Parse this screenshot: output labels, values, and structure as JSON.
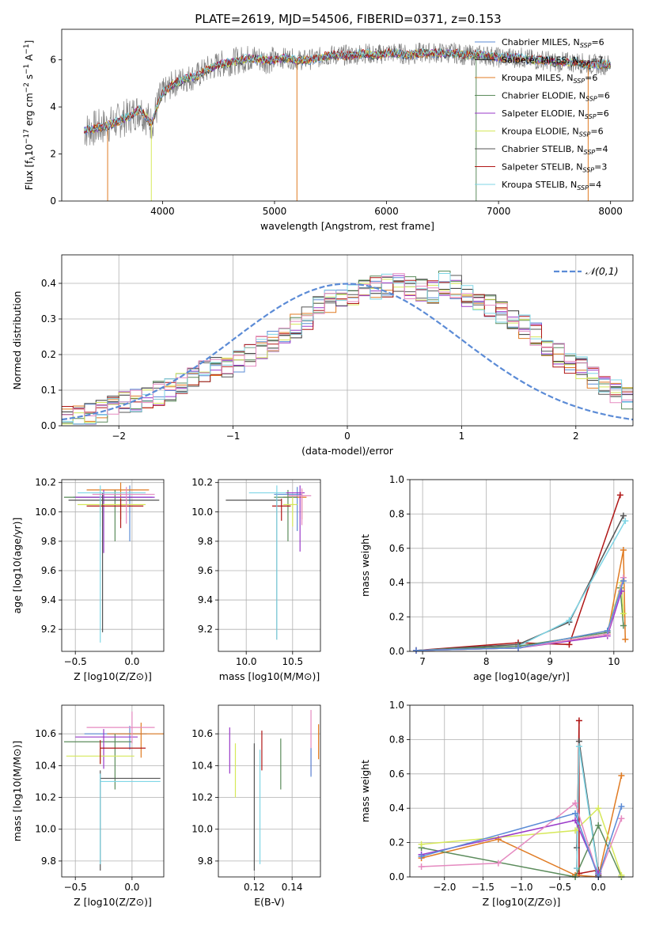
{
  "figure_title": "PLATE=2619, MJD=54506, FIBERID=0371, z=0.153",
  "series_colors": [
    "#5b8bd6",
    "#333333",
    "#e07b23",
    "#5c8c5c",
    "#9a3ac9",
    "#d6e85a",
    "#555555",
    "#b01717",
    "#7fd6e6",
    "#e58ac0"
  ],
  "chart_data": [
    {
      "type": "line",
      "title": "PLATE=2619, MJD=54506, FIBERID=0371, z=0.153",
      "xlabel": "wavelength [Angstrom, rest frame]",
      "ylabel": "Flux [f_λ 10^-17 erg cm^-2 s^-1 A^-1]",
      "xlim": [
        3100,
        8200
      ],
      "ylim": [
        0,
        7.3
      ],
      "xticks": [
        4000,
        5000,
        6000,
        7000,
        8000
      ],
      "yticks": [
        0,
        2,
        4,
        6
      ],
      "legend_placement": "right",
      "series": [
        {
          "name": "Chabrier MILES, NSSP=6",
          "color": "#5b8bd6"
        },
        {
          "name": "Salpeter MILES, NSSP=7",
          "color": "#333333"
        },
        {
          "name": "Kroupa MILES, NSSP=6",
          "color": "#e07b23"
        },
        {
          "name": "Chabrier ELODIE, NSSP=6",
          "color": "#5c8c5c"
        },
        {
          "name": "Salpeter ELODIE, NSSP=6",
          "color": "#9a3ac9"
        },
        {
          "name": "Kroupa ELODIE, NSSP=6",
          "color": "#d6e85a"
        },
        {
          "name": "Chabrier STELIB, NSSP=4",
          "color": "#555555"
        },
        {
          "name": "Salpeter STELIB, NSSP=3",
          "color": "#b01717"
        },
        {
          "name": "Kroupa STELIB, NSSP=4",
          "color": "#7fd6e6"
        }
      ],
      "data_color": "#808080",
      "x": [
        3300,
        3400,
        3500,
        3600,
        3700,
        3800,
        3900,
        4000,
        4100,
        4200,
        4300,
        4400,
        4500,
        4600,
        4700,
        4800,
        4900,
        5000,
        5100,
        5200,
        5300,
        5400,
        5500,
        5600,
        5700,
        5800,
        5900,
        6000,
        6100,
        6200,
        6300,
        6400,
        6500,
        6600,
        6700,
        6800,
        6900,
        7000,
        7100,
        7200,
        7300,
        7400,
        7500,
        7600,
        7700,
        7800,
        7900,
        8000
      ],
      "model_y": [
        3.0,
        3.1,
        3.2,
        3.4,
        3.6,
        3.9,
        3.3,
        4.6,
        5.0,
        5.2,
        5.3,
        5.6,
        5.8,
        5.9,
        6.0,
        6.1,
        6.0,
        6.0,
        6.1,
        6.0,
        6.0,
        6.1,
        6.2,
        6.2,
        6.2,
        6.3,
        6.2,
        6.3,
        6.3,
        6.2,
        6.3,
        6.3,
        6.3,
        6.3,
        6.2,
        6.2,
        6.2,
        6.1,
        6.1,
        6.1,
        6.0,
        6.0,
        5.9,
        5.9,
        5.9,
        5.8,
        5.8,
        5.8
      ]
    },
    {
      "type": "bar",
      "xlabel": "(data-model)/error",
      "ylabel": "Normed distribution",
      "xlim": [
        -2.5,
        2.5
      ],
      "ylim": [
        0,
        0.48
      ],
      "xticks": [
        -2,
        -1,
        0,
        1,
        2
      ],
      "yticks": [
        0.0,
        0.1,
        0.2,
        0.3,
        0.4
      ],
      "legend": "𝒩(0,1)",
      "legend_placement": "top-right",
      "bin_width": 0.1,
      "bin_start": -2.5,
      "hist_values": [
        0.02,
        0.025,
        0.03,
        0.04,
        0.055,
        0.065,
        0.07,
        0.075,
        0.09,
        0.1,
        0.115,
        0.13,
        0.15,
        0.16,
        0.17,
        0.185,
        0.2,
        0.22,
        0.24,
        0.26,
        0.28,
        0.3,
        0.33,
        0.35,
        0.36,
        0.37,
        0.38,
        0.39,
        0.395,
        0.4,
        0.39,
        0.38,
        0.375,
        0.4,
        0.39,
        0.37,
        0.36,
        0.34,
        0.32,
        0.3,
        0.28,
        0.26,
        0.23,
        0.2,
        0.18,
        0.16,
        0.14,
        0.12,
        0.1,
        0.08
      ],
      "normal_color": "#5b8bd6"
    },
    {
      "type": "scatter",
      "xlabel": "Z [log10(Z/Z⊙)]",
      "ylabel": "age [log10(age/yr)]",
      "xlim": [
        -0.62,
        0.28
      ],
      "ylim": [
        9.05,
        10.22
      ],
      "xticks": [
        -0.5,
        0.0
      ],
      "yticks": [
        9.2,
        9.4,
        9.6,
        9.8,
        10.0,
        10.2
      ],
      "points": [
        {
          "x": -0.02,
          "y": 10.1,
          "xerr": [
            0.5,
            0.2
          ],
          "yerr": [
            0.3,
            0.08
          ],
          "color": "#5b8bd6"
        },
        {
          "x": -0.1,
          "y": 10.15,
          "xerr": [
            0.3,
            0.25
          ],
          "yerr": [
            0.2,
            0.05
          ],
          "color": "#e07b23"
        },
        {
          "x": -0.15,
          "y": 10.1,
          "xerr": [
            0.45,
            0.15
          ],
          "yerr": [
            0.3,
            0.05
          ],
          "color": "#5c8c5c"
        },
        {
          "x": -0.25,
          "y": 10.1,
          "xerr": [
            0.25,
            0.45
          ],
          "yerr": [
            0.38,
            0.05
          ],
          "color": "#9a3ac9"
        },
        {
          "x": -0.28,
          "y": 10.05,
          "xerr": [
            0.2,
            0.4
          ],
          "yerr": [
            0.15,
            0.05
          ],
          "color": "#d6e85a"
        },
        {
          "x": -0.26,
          "y": 10.08,
          "xerr": [
            0.3,
            0.5
          ],
          "yerr": [
            0.9,
            0.05
          ],
          "color": "#555555"
        },
        {
          "x": -0.1,
          "y": 10.04,
          "xerr": [
            0.3,
            0.2
          ],
          "yerr": [
            0.15,
            0.05
          ],
          "color": "#b01717"
        },
        {
          "x": -0.28,
          "y": 10.13,
          "xerr": [
            0.2,
            0.4
          ],
          "yerr": [
            1.02,
            0.05
          ],
          "color": "#7fd6e6"
        },
        {
          "x": -0.05,
          "y": 10.12,
          "xerr": [
            0.3,
            0.25
          ],
          "yerr": [
            0.2,
            0.05
          ],
          "color": "#e58ac0"
        }
      ]
    },
    {
      "type": "scatter",
      "xlabel": "mass [log10(M/M⊙)]",
      "ylabel": "",
      "xlim": [
        9.7,
        10.8
      ],
      "ylim": [
        9.05,
        10.22
      ],
      "xticks": [
        10.0,
        10.5
      ],
      "yticks": [
        9.2,
        9.4,
        9.6,
        9.8,
        10.0,
        10.2
      ],
      "points": [
        {
          "x": 10.55,
          "y": 10.12,
          "xerr": [
            0.25,
            0.05
          ],
          "yerr": [
            0.25,
            0.05
          ],
          "color": "#5b8bd6"
        },
        {
          "x": 10.6,
          "y": 10.1,
          "xerr": [
            0.2,
            0.05
          ],
          "yerr": [
            0.15,
            0.05
          ],
          "color": "#e07b23"
        },
        {
          "x": 10.45,
          "y": 10.1,
          "xerr": [
            0.15,
            0.1
          ],
          "yerr": [
            0.3,
            0.05
          ],
          "color": "#5c8c5c"
        },
        {
          "x": 10.58,
          "y": 10.13,
          "xerr": [
            0.15,
            0.05
          ],
          "yerr": [
            0.4,
            0.05
          ],
          "color": "#9a3ac9"
        },
        {
          "x": 10.5,
          "y": 10.05,
          "xerr": [
            0.1,
            0.05
          ],
          "yerr": [
            0.15,
            0.05
          ],
          "color": "#d6e85a"
        },
        {
          "x": 10.33,
          "y": 10.08,
          "xerr": [
            0.55,
            0.05
          ],
          "yerr": [
            0.95,
            0.05
          ],
          "color": "#555555"
        },
        {
          "x": 10.38,
          "y": 10.04,
          "xerr": [
            0.1,
            0.1
          ],
          "yerr": [
            0.1,
            0.05
          ],
          "color": "#b01717"
        },
        {
          "x": 10.33,
          "y": 10.13,
          "xerr": [
            0.3,
            0.1
          ],
          "yerr": [
            1.0,
            0.05
          ],
          "color": "#7fd6e6"
        },
        {
          "x": 10.6,
          "y": 10.11,
          "xerr": [
            0.15,
            0.1
          ],
          "yerr": [
            0.2,
            0.05
          ],
          "color": "#e58ac0"
        }
      ]
    },
    {
      "type": "line",
      "xlabel": "age [log10(age/yr)]",
      "ylabel": "mass weight",
      "xlim": [
        6.8,
        10.3
      ],
      "ylim": [
        0,
        1.0
      ],
      "xticks": [
        7,
        8,
        9,
        10
      ],
      "yticks": [
        0.0,
        0.2,
        0.4,
        0.6,
        0.8,
        1.0
      ],
      "series": [
        {
          "color": "#b01717",
          "x": [
            6.9,
            8.5,
            9.3,
            10.1
          ],
          "y": [
            0.005,
            0.05,
            0.04,
            0.91
          ]
        },
        {
          "color": "#555555",
          "x": [
            6.9,
            8.5,
            9.3,
            10.15
          ],
          "y": [
            0.005,
            0.04,
            0.17,
            0.79
          ]
        },
        {
          "color": "#7fd6e6",
          "x": [
            6.9,
            8.5,
            9.3,
            10.18
          ],
          "y": [
            0.005,
            0.03,
            0.18,
            0.76
          ]
        },
        {
          "color": "#e07b23",
          "x": [
            6.9,
            8.5,
            9.9,
            10.15,
            10.18
          ],
          "y": [
            0.005,
            0.02,
            0.1,
            0.59,
            0.07
          ]
        },
        {
          "color": "#5c8c5c",
          "x": [
            6.9,
            8.5,
            9.9,
            10.1,
            10.15
          ],
          "y": [
            0.005,
            0.03,
            0.11,
            0.37,
            0.15
          ]
        },
        {
          "color": "#d6e85a",
          "x": [
            6.9,
            8.5,
            9.9,
            10.12,
            10.15
          ],
          "y": [
            0.005,
            0.02,
            0.12,
            0.4,
            0.22
          ]
        },
        {
          "color": "#9a3ac9",
          "x": [
            6.9,
            8.5,
            9.9,
            10.12
          ],
          "y": [
            0.005,
            0.02,
            0.09,
            0.35
          ]
        },
        {
          "color": "#e58ac0",
          "x": [
            6.9,
            8.5,
            9.9,
            10.15
          ],
          "y": [
            0.005,
            0.02,
            0.1,
            0.43
          ]
        },
        {
          "color": "#5b8bd6",
          "x": [
            6.9,
            8.5,
            9.9,
            10.15
          ],
          "y": [
            0.005,
            0.02,
            0.12,
            0.41
          ]
        }
      ]
    },
    {
      "type": "scatter",
      "xlabel": "Z [log10(Z/Z⊙)]",
      "ylabel": "mass [log10(M/M⊙)]",
      "xlim": [
        -0.62,
        0.28
      ],
      "ylim": [
        9.7,
        10.78
      ],
      "xticks": [
        -0.5,
        0.0
      ],
      "yticks": [
        9.8,
        10.0,
        10.2,
        10.4,
        10.6
      ],
      "points": [
        {
          "x": -0.02,
          "y": 10.6,
          "xerr": [
            0.4,
            0.15
          ],
          "yerr": [
            0.1,
            0.05
          ],
          "color": "#5b8bd6"
        },
        {
          "x": 0.08,
          "y": 10.6,
          "xerr": [
            0.3,
            0.2
          ],
          "yerr": [
            0.15,
            0.07
          ],
          "color": "#e07b23"
        },
        {
          "x": -0.15,
          "y": 10.55,
          "xerr": [
            0.45,
            0.15
          ],
          "yerr": [
            0.3,
            0.05
          ],
          "color": "#5c8c5c"
        },
        {
          "x": -0.25,
          "y": 10.58,
          "xerr": [
            0.25,
            0.3
          ],
          "yerr": [
            0.2,
            0.05
          ],
          "color": "#9a3ac9"
        },
        {
          "x": -0.28,
          "y": 10.46,
          "xerr": [
            0.3,
            0.3
          ],
          "yerr": [
            0.05,
            0.05
          ],
          "color": "#d6e85a"
        },
        {
          "x": -0.28,
          "y": 10.32,
          "xerr": [
            0.0,
            0.53
          ],
          "yerr": [
            0.58,
            0.05
          ],
          "color": "#555555"
        },
        {
          "x": -0.28,
          "y": 10.51,
          "xerr": [
            0.0,
            0.4
          ],
          "yerr": [
            0.1,
            0.05
          ],
          "color": "#b01717"
        },
        {
          "x": -0.28,
          "y": 10.3,
          "xerr": [
            0.0,
            0.53
          ],
          "yerr": [
            0.52,
            0.05
          ],
          "color": "#7fd6e6"
        },
        {
          "x": 0.0,
          "y": 10.64,
          "xerr": [
            0.4,
            0.2
          ],
          "yerr": [
            0.1,
            0.1
          ],
          "color": "#e58ac0"
        }
      ]
    },
    {
      "type": "scatter",
      "xlabel": "E(B-V)",
      "ylabel": "",
      "xlim": [
        0.101,
        0.155
      ],
      "ylim": [
        9.7,
        10.78
      ],
      "xticks": [
        0.12,
        0.14
      ],
      "yticks": [
        9.8,
        10.0,
        10.2,
        10.4,
        10.6
      ],
      "points": [
        {
          "x": 0.107,
          "y": 10.5,
          "xerr": [
            0,
            0
          ],
          "yerr": [
            0.15,
            0.14
          ],
          "color": "#9a3ac9"
        },
        {
          "x": 0.11,
          "y": 10.37,
          "xerr": [
            0,
            0
          ],
          "yerr": [
            0.17,
            0.17
          ],
          "color": "#d6e85a"
        },
        {
          "x": 0.12,
          "y": 10.14,
          "xerr": [
            0,
            0
          ],
          "yerr": [
            0.4,
            0.4
          ],
          "color": "#555555"
        },
        {
          "x": 0.123,
          "y": 10.14,
          "xerr": [
            0,
            0
          ],
          "yerr": [
            0.36,
            0.36
          ],
          "color": "#7fd6e6"
        },
        {
          "x": 0.124,
          "y": 10.5,
          "xerr": [
            0,
            0
          ],
          "yerr": [
            0.13,
            0.12
          ],
          "color": "#b01717"
        },
        {
          "x": 0.134,
          "y": 10.41,
          "xerr": [
            0,
            0
          ],
          "yerr": [
            0.16,
            0.16
          ],
          "color": "#5c8c5c"
        },
        {
          "x": 0.15,
          "y": 10.54,
          "xerr": [
            0,
            0
          ],
          "yerr": [
            0.2,
            0.21
          ],
          "color": "#e58ac0"
        },
        {
          "x": 0.15,
          "y": 10.42,
          "xerr": [
            0,
            0
          ],
          "yerr": [
            0.09,
            0.09
          ],
          "color": "#5b8bd6"
        },
        {
          "x": 0.154,
          "y": 10.55,
          "xerr": [
            0,
            0
          ],
          "yerr": [
            0.11,
            0.11
          ],
          "color": "#e07b23"
        }
      ]
    },
    {
      "type": "line",
      "xlabel": "Z [log10(Z/Z⊙)]",
      "ylabel": "mass weight",
      "xlim": [
        -2.45,
        0.45
      ],
      "ylim": [
        0,
        1.0
      ],
      "xticks": [
        -2.0,
        -1.5,
        -1.0,
        -0.5,
        0.0
      ],
      "yticks": [
        0.0,
        0.2,
        0.4,
        0.6,
        0.8,
        1.0
      ],
      "series": [
        {
          "color": "#b01717",
          "x": [
            -0.28,
            -0.25,
            -0.25,
            0.0,
            0.0
          ],
          "y": [
            0.05,
            0.91,
            0.02,
            0.04,
            0.01
          ]
        },
        {
          "color": "#555555",
          "x": [
            -0.28,
            -0.25,
            0.0,
            0.0
          ],
          "y": [
            0.17,
            0.79,
            0.03,
            0.01
          ]
        },
        {
          "color": "#7fd6e6",
          "x": [
            -0.28,
            -0.25,
            0.0
          ],
          "y": [
            0.05,
            0.76,
            0.02
          ]
        },
        {
          "color": "#e07b23",
          "x": [
            -2.3,
            -1.3,
            -0.3,
            0.0,
            0.3
          ],
          "y": [
            0.11,
            0.22,
            0.01,
            0.0,
            0.59
          ]
        },
        {
          "color": "#5c8c5c",
          "x": [
            -2.3,
            -0.3,
            0.0,
            0.3
          ],
          "y": [
            0.17,
            0.0,
            0.3,
            0.0
          ]
        },
        {
          "color": "#d6e85a",
          "x": [
            -2.3,
            -0.3,
            0.0,
            0.3
          ],
          "y": [
            0.19,
            0.27,
            0.4,
            0.01
          ]
        },
        {
          "color": "#9a3ac9",
          "x": [
            -2.3,
            -0.3,
            0.0
          ],
          "y": [
            0.13,
            0.33,
            0.02
          ]
        },
        {
          "color": "#e58ac0",
          "x": [
            -2.3,
            -1.3,
            -0.3,
            0.0,
            0.3
          ],
          "y": [
            0.06,
            0.08,
            0.43,
            0.0,
            0.34
          ]
        },
        {
          "color": "#5b8bd6",
          "x": [
            -2.3,
            -0.3,
            0.0,
            0.3
          ],
          "y": [
            0.12,
            0.37,
            0.0,
            0.41
          ]
        }
      ]
    }
  ]
}
